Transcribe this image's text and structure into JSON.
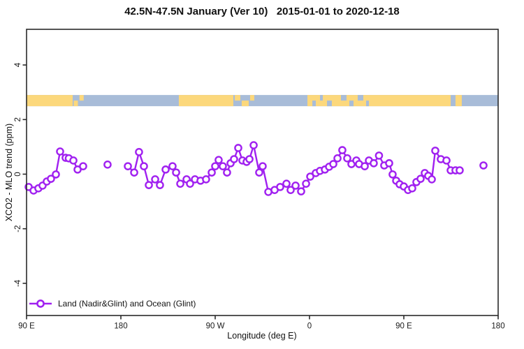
{
  "title": "42.5N-47.5N January (Ver 10)   2015-01-01 to 2020-12-18",
  "colors": {
    "series": "#A020F0",
    "land": "#FCD87C",
    "ocean": "#A8BCD8",
    "axis": "#2a2a2a",
    "text": "#1a1a1a",
    "background": "#ffffff"
  },
  "legend": {
    "label": "Land (Nadir&Glint) and Ocean (Glint)",
    "marker": "open-circle-on-line"
  },
  "chart_data": {
    "type": "line",
    "title": "42.5N-47.5N January (Ver 10)   2015-01-01 to 2020-12-18",
    "xlabel": "Longitude (deg E)",
    "ylabel": "XCO2 - MLO trend (ppm)",
    "xlim": [
      90,
      540
    ],
    "ylim": [
      -5.18,
      5.31
    ],
    "grid": false,
    "legend_position": "bottom-left-inside",
    "x_ticks": [
      {
        "deg": 90,
        "label": "90 E"
      },
      {
        "deg": 180,
        "label": "180"
      },
      {
        "deg": 270,
        "label": "90 W"
      },
      {
        "deg": 360,
        "label": "0"
      },
      {
        "deg": 450,
        "label": "90 E"
      },
      {
        "deg": 540,
        "label": "180"
      }
    ],
    "y_ticks": [
      {
        "v": -4,
        "label": "-4"
      },
      {
        "v": -2,
        "label": "-2"
      },
      {
        "v": 0,
        "label": "0"
      },
      {
        "v": 2,
        "label": "2"
      },
      {
        "v": 4,
        "label": "4"
      }
    ],
    "map_strip": {
      "description": "land/ocean strip along longitude at 42.5N-47.5N",
      "y_range": [
        2.49,
        2.9
      ],
      "land": [
        {
          "from": 90,
          "to": 134,
          "part": "full"
        },
        {
          "from": 135,
          "to": 139,
          "part": "bottom"
        },
        {
          "from": 140.5,
          "to": 144.5,
          "part": "top"
        },
        {
          "from": 235.3,
          "to": 287.3,
          "part": "full"
        },
        {
          "from": 288.7,
          "to": 294,
          "part": "top"
        },
        {
          "from": 295.3,
          "to": 302,
          "part": "bottom"
        },
        {
          "from": 303.3,
          "to": 307.3,
          "part": "top"
        },
        {
          "from": 358,
          "to": 494.7,
          "part": "full"
        },
        {
          "from": 499.3,
          "to": 505.3,
          "part": "full"
        }
      ],
      "ocean_patches": [
        {
          "from": 362.7,
          "to": 366,
          "part": "bottom"
        },
        {
          "from": 370,
          "to": 372.7,
          "part": "top"
        },
        {
          "from": 376.7,
          "to": 381.3,
          "part": "bottom"
        },
        {
          "from": 390,
          "to": 395.3,
          "part": "top"
        },
        {
          "from": 398,
          "to": 402,
          "part": "bottom"
        },
        {
          "from": 406,
          "to": 411.3,
          "part": "top"
        },
        {
          "from": 414,
          "to": 416.7,
          "part": "bottom"
        }
      ]
    },
    "series": [
      {
        "name": "Land (Nadir&Glint) and Ocean (Glint)",
        "marker": "open-circle",
        "segments": [
          [
            [
              92,
              -0.47
            ],
            [
              96.7,
              -0.6
            ],
            [
              101.3,
              -0.52
            ],
            [
              105.3,
              -0.42
            ],
            [
              109.3,
              -0.27
            ],
            [
              113.3,
              -0.17
            ],
            [
              118,
              -0.01
            ],
            [
              122,
              0.83
            ],
            [
              127.3,
              0.6
            ],
            [
              130.3,
              0.58
            ],
            [
              134.7,
              0.5
            ],
            [
              138.7,
              0.17
            ],
            [
              144,
              0.29
            ]
          ],
          [
            [
              167.3,
              0.35
            ]
          ],
          [
            [
              186.7,
              0.29
            ],
            [
              192.7,
              0.06
            ],
            [
              197.3,
              0.81
            ],
            [
              202,
              0.29
            ],
            [
              206.7,
              -0.4
            ],
            [
              212.7,
              -0.19
            ],
            [
              217.3,
              -0.4
            ],
            [
              222.7,
              0.17
            ],
            [
              229.3,
              0.29
            ],
            [
              232.7,
              0.06
            ],
            [
              236.7,
              -0.35
            ],
            [
              242.7,
              -0.19
            ],
            [
              246,
              -0.35
            ],
            [
              250.7,
              -0.19
            ],
            [
              256,
              -0.24
            ],
            [
              261.3,
              -0.19
            ],
            [
              266.7,
              0.06
            ],
            [
              270,
              0.29
            ],
            [
              273.3,
              0.52
            ],
            [
              277.3,
              0.29
            ],
            [
              281.3,
              0.06
            ],
            [
              284.7,
              0.4
            ],
            [
              288,
              0.55
            ],
            [
              292,
              0.96
            ],
            [
              296,
              0.5
            ],
            [
              300,
              0.45
            ],
            [
              302.7,
              0.55
            ],
            [
              306.7,
              1.06
            ],
            [
              312,
              0.06
            ],
            [
              315.3,
              0.29
            ],
            [
              320.7,
              -0.65
            ],
            [
              326.7,
              -0.58
            ],
            [
              332,
              -0.47
            ],
            [
              338,
              -0.35
            ],
            [
              342,
              -0.58
            ],
            [
              346.7,
              -0.42
            ],
            [
              352,
              -0.63
            ],
            [
              356.7,
              -0.35
            ],
            [
              360.7,
              -0.09
            ],
            [
              366,
              0.04
            ],
            [
              370,
              0.12
            ],
            [
              374.7,
              0.17
            ],
            [
              378.7,
              0.27
            ],
            [
              382.7,
              0.37
            ],
            [
              386.7,
              0.58
            ],
            [
              391.3,
              0.88
            ],
            [
              396,
              0.58
            ],
            [
              400,
              0.37
            ],
            [
              404.7,
              0.5
            ],
            [
              407.3,
              0.37
            ],
            [
              412.7,
              0.29
            ],
            [
              416.7,
              0.5
            ],
            [
              421.3,
              0.4
            ],
            [
              426.3,
              0.68
            ],
            [
              431.3,
              0.32
            ],
            [
              436,
              0.4
            ],
            [
              439.3,
              -0.01
            ],
            [
              442.7,
              -0.24
            ],
            [
              446,
              -0.37
            ],
            [
              450,
              -0.45
            ],
            [
              454,
              -0.58
            ],
            [
              458,
              -0.52
            ],
            [
              462,
              -0.29
            ],
            [
              466,
              -0.17
            ],
            [
              470,
              0.04
            ],
            [
              473.3,
              -0.06
            ],
            [
              476.7,
              -0.19
            ],
            [
              480,
              0.86
            ],
            [
              485.3,
              0.55
            ],
            [
              490.7,
              0.5
            ],
            [
              494.7,
              0.14
            ],
            [
              499.3,
              0.14
            ],
            [
              503.3,
              0.14
            ]
          ],
          [
            [
              526,
              0.32
            ]
          ]
        ]
      }
    ]
  }
}
